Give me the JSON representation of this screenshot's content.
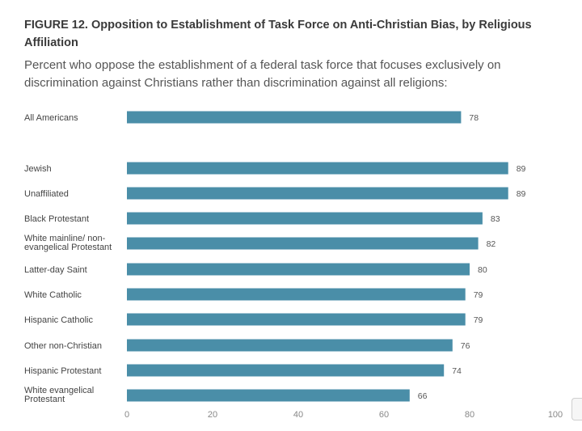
{
  "chart_data": {
    "type": "bar",
    "orientation": "horizontal",
    "title": "FIGURE 12.  Opposition to Establishment of Task Force on Anti-Christian Bias, by Religious Affiliation",
    "subtitle": "Percent who oppose the establishment of a federal task force that focuses exclusively on discrimination against Christians rather than discrimination against all religions:",
    "categories": [
      "All Americans",
      "Jewish",
      "Unaffiliated",
      "Black Protestant",
      "White mainline/ non-evangelical Protestant",
      "Latter-day Saint",
      "White Catholic",
      "Hispanic Catholic",
      "Other non-Christian",
      "Hispanic Protestant",
      "White evangelical Protestant"
    ],
    "category_lines": [
      [
        "All Americans"
      ],
      [
        "Jewish"
      ],
      [
        "Unaffiliated"
      ],
      [
        "Black Protestant"
      ],
      [
        "White mainline/ non-",
        "evangelical Protestant"
      ],
      [
        "Latter-day Saint"
      ],
      [
        "White Catholic"
      ],
      [
        "Hispanic Catholic"
      ],
      [
        "Other non-Christian"
      ],
      [
        "Hispanic Protestant"
      ],
      [
        "White evangelical",
        "Protestant"
      ]
    ],
    "values": [
      78,
      89,
      89,
      83,
      82,
      80,
      79,
      79,
      76,
      74,
      66
    ],
    "xlim": [
      0,
      100
    ],
    "xticks": [
      0,
      20,
      40,
      60,
      80,
      100
    ],
    "bar_color": "#4a8ea8",
    "grid": false,
    "legend": "none"
  }
}
